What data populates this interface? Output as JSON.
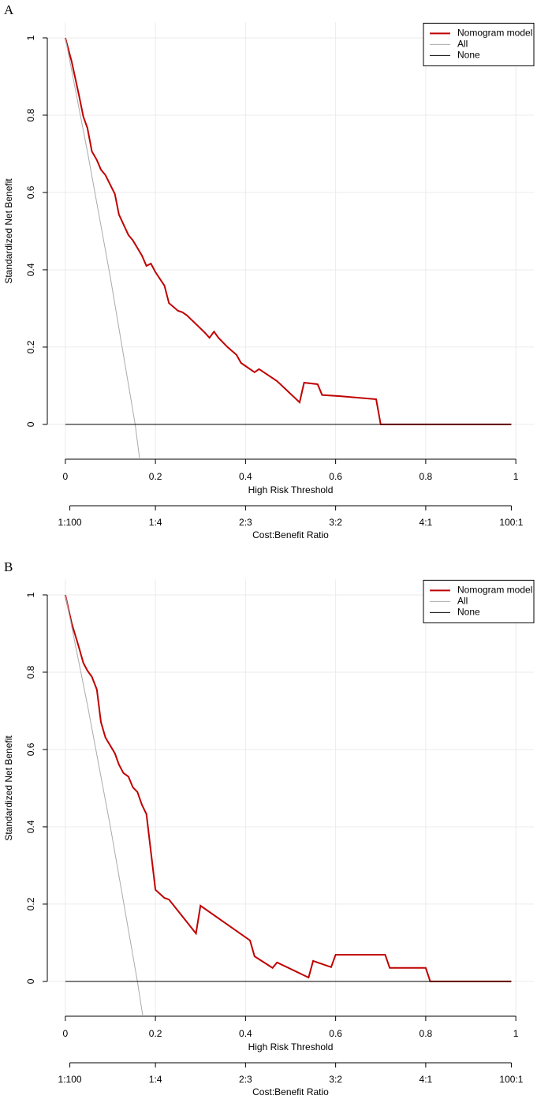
{
  "chart_data": [
    {
      "type": "line",
      "panel_label": "A",
      "xlabel": "High Risk Threshold",
      "ylabel": "Standardized Net Benefit",
      "x2label": "Cost:Benefit Ratio",
      "xlim": [
        -0.04,
        1.04
      ],
      "ylim": [
        -0.09,
        1.04
      ],
      "xticks": [
        0.0,
        0.2,
        0.4,
        0.6,
        0.8,
        1.0
      ],
      "yticks": [
        0.0,
        0.2,
        0.4,
        0.6,
        0.8,
        1.0
      ],
      "x2ticks": [
        {
          "value": 0.01,
          "label": "1:100"
        },
        {
          "value": 0.2,
          "label": "1:4"
        },
        {
          "value": 0.4,
          "label": "2:3"
        },
        {
          "value": 0.6,
          "label": "3:2"
        },
        {
          "value": 0.8,
          "label": "4:1"
        },
        {
          "value": 0.99,
          "label": "100:1"
        }
      ],
      "grid": true,
      "legend": "topright",
      "series": [
        {
          "name": "Nomogram model",
          "color": "#c00000",
          "width": 2,
          "x": [
            0,
            0.014,
            0.03,
            0.04,
            0.049,
            0.059,
            0.07,
            0.079,
            0.089,
            0.11,
            0.119,
            0.14,
            0.15,
            0.17,
            0.18,
            0.19,
            0.2,
            0.22,
            0.23,
            0.25,
            0.26,
            0.27,
            0.31,
            0.32,
            0.33,
            0.34,
            0.36,
            0.38,
            0.39,
            0.42,
            0.43,
            0.47,
            0.52,
            0.53,
            0.56,
            0.57,
            0.61,
            0.69,
            0.7,
            0.99
          ],
          "values": [
            1.0,
            0.939,
            0.853,
            0.796,
            0.767,
            0.706,
            0.684,
            0.659,
            0.645,
            0.596,
            0.543,
            0.49,
            0.476,
            0.437,
            0.41,
            0.416,
            0.394,
            0.359,
            0.314,
            0.294,
            0.29,
            0.282,
            0.237,
            0.224,
            0.24,
            0.224,
            0.2,
            0.18,
            0.159,
            0.135,
            0.143,
            0.112,
            0.057,
            0.108,
            0.104,
            0.076,
            0.073,
            0.065,
            0.0,
            0.0
          ]
        },
        {
          "name": "All",
          "color": "#aaaaaa",
          "width": 1,
          "x": [
            0,
            0.05,
            0.1,
            0.155,
            0.165
          ],
          "values": [
            1.0,
            0.7,
            0.38,
            0.0,
            -0.09
          ]
        },
        {
          "name": "None",
          "color": "#000000",
          "width": 1,
          "x": [
            0,
            0.99
          ],
          "values": [
            0.0,
            0.0
          ]
        }
      ]
    },
    {
      "type": "line",
      "panel_label": "B",
      "xlabel": "High Risk Threshold",
      "ylabel": "Standardized Net Benefit",
      "x2label": "Cost:Benefit Ratio",
      "xlim": [
        -0.04,
        1.04
      ],
      "ylim": [
        -0.09,
        1.04
      ],
      "xticks": [
        0.0,
        0.2,
        0.4,
        0.6,
        0.8,
        1.0
      ],
      "yticks": [
        0.0,
        0.2,
        0.4,
        0.6,
        0.8,
        1.0
      ],
      "x2ticks": [
        {
          "value": 0.01,
          "label": "1:100"
        },
        {
          "value": 0.2,
          "label": "1:4"
        },
        {
          "value": 0.4,
          "label": "2:3"
        },
        {
          "value": 0.6,
          "label": "3:2"
        },
        {
          "value": 0.8,
          "label": "4:1"
        },
        {
          "value": 0.99,
          "label": "100:1"
        }
      ],
      "grid": true,
      "legend": "topright",
      "series": [
        {
          "name": "Nomogram model",
          "color": "#c00000",
          "width": 2,
          "x": [
            0,
            0.014,
            0.03,
            0.04,
            0.049,
            0.059,
            0.07,
            0.079,
            0.089,
            0.11,
            0.119,
            0.129,
            0.14,
            0.15,
            0.16,
            0.17,
            0.18,
            0.19,
            0.2,
            0.22,
            0.23,
            0.29,
            0.3,
            0.41,
            0.42,
            0.46,
            0.47,
            0.54,
            0.55,
            0.59,
            0.6,
            0.71,
            0.72,
            0.8,
            0.81,
            0.99
          ],
          "values": [
            1.0,
            0.927,
            0.865,
            0.824,
            0.804,
            0.788,
            0.755,
            0.671,
            0.631,
            0.59,
            0.561,
            0.539,
            0.53,
            0.502,
            0.49,
            0.457,
            0.433,
            0.335,
            0.237,
            0.216,
            0.212,
            0.124,
            0.196,
            0.106,
            0.065,
            0.035,
            0.049,
            0.01,
            0.053,
            0.037,
            0.069,
            0.069,
            0.035,
            0.035,
            0.0,
            0.0
          ]
        },
        {
          "name": "All",
          "color": "#aaaaaa",
          "width": 1,
          "x": [
            0,
            0.05,
            0.1,
            0.16,
            0.172
          ],
          "values": [
            1.0,
            0.71,
            0.4,
            0.0,
            -0.09
          ]
        },
        {
          "name": "None",
          "color": "#000000",
          "width": 1,
          "x": [
            0,
            0.99
          ],
          "values": [
            0.0,
            0.0
          ]
        }
      ]
    }
  ]
}
